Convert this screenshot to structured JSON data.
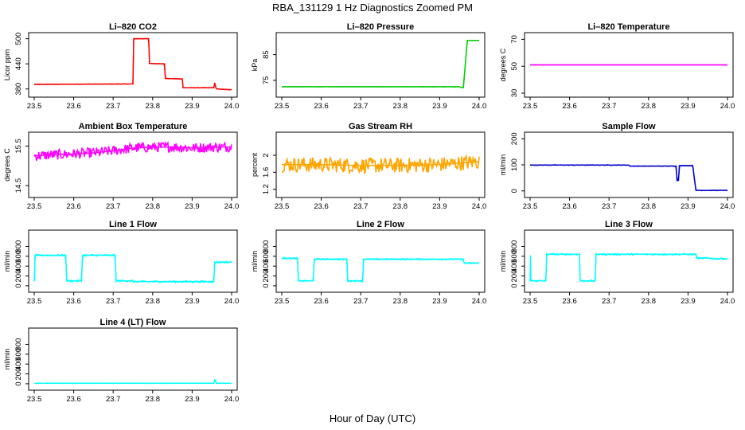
{
  "figure": {
    "title": "RBA_131129  1 Hz Diagnostics Zoomed PM",
    "xlabel": "Hour of Day (UTC)"
  },
  "chart_data": [
    {
      "type": "line",
      "title": "Li–820 CO2",
      "ylabel": "Licor ppm",
      "color": "#ff0000",
      "xlim": [
        23.5,
        24.0
      ],
      "ylim": [
        370,
        505
      ],
      "yticks": [
        380,
        440,
        500
      ],
      "xticks": [
        "23.5",
        "23.6",
        "23.7",
        "23.8",
        "23.9",
        "24.0"
      ],
      "series": [
        {
          "name": "CO2",
          "x": [
            23.5,
            23.75,
            23.752,
            23.79,
            23.792,
            23.83,
            23.832,
            23.875,
            23.877,
            23.955,
            23.957,
            23.96,
            23.962,
            24.0
          ],
          "y": [
            391,
            392,
            500,
            500,
            441,
            440,
            405,
            404,
            383,
            383,
            395,
            383,
            380,
            378
          ]
        }
      ]
    },
    {
      "type": "line",
      "title": "Li–820 Pressure",
      "ylabel": "kPa",
      "color": "#00cc00",
      "xlim": [
        23.5,
        24.0
      ],
      "ylim": [
        70,
        92
      ],
      "yticks": [
        75,
        85
      ],
      "xticks": [
        "23.5",
        "23.6",
        "23.7",
        "23.8",
        "23.9",
        "24.0"
      ],
      "series": [
        {
          "name": "Pressure",
          "x": [
            23.5,
            23.95,
            23.955,
            23.96,
            23.97,
            23.975,
            24.0
          ],
          "y": [
            72.5,
            72.5,
            72.2,
            72.2,
            90.5,
            90.5,
            90.5
          ]
        }
      ]
    },
    {
      "type": "line",
      "title": "Li–820 Temperature",
      "ylabel": "degrees C",
      "color": "#ff00ff",
      "xlim": [
        23.5,
        24.0
      ],
      "ylim": [
        30,
        72
      ],
      "yticks": [
        30,
        50,
        70
      ],
      "xticks": [
        "23.5",
        "23.6",
        "23.7",
        "23.8",
        "23.9",
        "24.0"
      ],
      "series": [
        {
          "name": "Temperature",
          "x": [
            23.5,
            24.0
          ],
          "y": [
            51,
            51
          ]
        }
      ]
    },
    {
      "type": "line",
      "title": "Ambient Box Temperature",
      "ylabel": "degrees C",
      "color": "#ff00ff",
      "xlim": [
        23.5,
        24.0
      ],
      "ylim": [
        14.3,
        15.75
      ],
      "yticks": [
        14.5,
        15.5
      ],
      "xticks": [
        "23.5",
        "23.6",
        "23.7",
        "23.8",
        "23.9",
        "24.0"
      ],
      "series": [
        {
          "name": "Ambient",
          "x": [
            23.5,
            23.55,
            23.6,
            23.65,
            23.7,
            23.75,
            23.8,
            23.85,
            23.9,
            23.95,
            24.0
          ],
          "y": [
            15.25,
            15.28,
            15.3,
            15.33,
            15.38,
            15.45,
            15.47,
            15.48,
            15.45,
            15.47,
            15.48
          ]
        }
      ]
    },
    {
      "type": "line",
      "title": "Gas Stream RH",
      "ylabel": "percent",
      "color": "#ffa500",
      "xlim": [
        23.5,
        24.0
      ],
      "ylim": [
        1.1,
        2.45
      ],
      "yticks": [
        1.2,
        1.6,
        2.0
      ],
      "xticks": [
        "23.5",
        "23.6",
        "23.7",
        "23.8",
        "23.9",
        "24.0"
      ],
      "series": [
        {
          "name": "RH",
          "x": [
            23.5,
            23.6,
            23.7,
            23.8,
            23.9,
            24.0
          ],
          "y": [
            1.78,
            1.78,
            1.76,
            1.76,
            1.78,
            1.85
          ]
        }
      ]
    },
    {
      "type": "line",
      "title": "Sample Flow",
      "ylabel": "ml/min",
      "color": "#0000cc",
      "xlim": [
        23.5,
        24.0
      ],
      "ylim": [
        -10,
        210
      ],
      "yticks": [
        0,
        100,
        200
      ],
      "xticks": [
        "23.5",
        "23.6",
        "23.7",
        "23.8",
        "23.9",
        "24.0"
      ],
      "series": [
        {
          "name": "Sample",
          "x": [
            23.5,
            23.75,
            23.752,
            23.87,
            23.872,
            23.876,
            23.878,
            23.912,
            23.92,
            24.0
          ],
          "y": [
            99,
            99,
            95,
            95,
            40,
            40,
            97,
            97,
            2,
            2
          ]
        }
      ]
    },
    {
      "type": "line",
      "title": "Line 1 Flow",
      "ylabel": "ml/min",
      "color": "#00ffff",
      "xlim": [
        23.5,
        24.0
      ],
      "ylim": [
        -50,
        1050
      ],
      "yticks": [
        0,
        200,
        400,
        600,
        800
      ],
      "xticks": [
        "23.5",
        "23.6",
        "23.7",
        "23.8",
        "23.9",
        "24.0"
      ],
      "series": [
        {
          "name": "Line 1",
          "x": [
            23.5,
            23.501,
            23.502,
            23.58,
            23.582,
            23.62,
            23.622,
            23.705,
            23.707,
            23.75,
            23.752,
            23.955,
            23.957,
            24.0
          ],
          "y": [
            100,
            100,
            620,
            620,
            100,
            100,
            620,
            620,
            100,
            100,
            85,
            85,
            480,
            480
          ]
        }
      ]
    },
    {
      "type": "line",
      "title": "Line 2 Flow",
      "ylabel": "ml/min",
      "color": "#00ffff",
      "xlim": [
        23.5,
        24.0
      ],
      "ylim": [
        -50,
        1050
      ],
      "yticks": [
        0,
        200,
        400,
        600,
        800
      ],
      "xticks": [
        "23.5",
        "23.6",
        "23.7",
        "23.8",
        "23.9",
        "24.0"
      ],
      "series": [
        {
          "name": "Line 2",
          "x": [
            23.5,
            23.54,
            23.542,
            23.58,
            23.582,
            23.665,
            23.667,
            23.705,
            23.707,
            23.96,
            23.962,
            24.0
          ],
          "y": [
            560,
            560,
            100,
            100,
            540,
            540,
            100,
            100,
            540,
            540,
            460,
            460
          ]
        }
      ]
    },
    {
      "type": "line",
      "title": "Line 3 Flow",
      "ylabel": "ml/min",
      "color": "#00ffff",
      "xlim": [
        23.5,
        24.0
      ],
      "ylim": [
        -50,
        1050
      ],
      "yticks": [
        0,
        200,
        400,
        600,
        800
      ],
      "xticks": [
        "23.5",
        "23.6",
        "23.7",
        "23.8",
        "23.9",
        "24.0"
      ],
      "series": [
        {
          "name": "Line 3",
          "x": [
            23.5,
            23.501,
            23.502,
            23.54,
            23.542,
            23.625,
            23.627,
            23.665,
            23.667,
            23.92,
            23.922,
            23.96,
            23.962,
            24.0
          ],
          "y": [
            100,
            620,
            100,
            100,
            640,
            640,
            100,
            100,
            640,
            640,
            560,
            560,
            550,
            550
          ]
        }
      ]
    },
    {
      "type": "line",
      "title": "Line 4 (LT) Flow",
      "ylabel": "ml/min",
      "color": "#00ffff",
      "xlim": [
        23.5,
        24.0
      ],
      "ylim": [
        -50,
        1050
      ],
      "yticks": [
        0,
        200,
        400,
        600,
        800
      ],
      "xticks": [
        "23.5",
        "23.6",
        "23.7",
        "23.8",
        "23.9",
        "24.0"
      ],
      "series": [
        {
          "name": "Line 4",
          "x": [
            23.5,
            23.955,
            23.957,
            23.959,
            23.961,
            24.0
          ],
          "y": [
            10,
            10,
            75,
            75,
            10,
            10
          ]
        }
      ]
    }
  ]
}
